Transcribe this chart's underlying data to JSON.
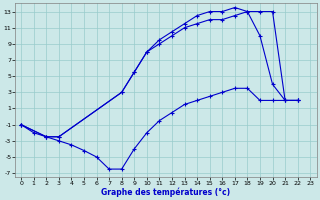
{
  "xlabel": "Graphe des températures (°c)",
  "bg_color": "#cce8e8",
  "grid_color": "#99cccc",
  "line_color": "#0000cc",
  "xlim": [
    -0.5,
    23.5
  ],
  "ylim": [
    -7.5,
    14
  ],
  "xticks": [
    0,
    1,
    2,
    3,
    4,
    5,
    6,
    7,
    8,
    9,
    10,
    11,
    12,
    13,
    14,
    15,
    16,
    17,
    18,
    19,
    20,
    21,
    22,
    23
  ],
  "yticks": [
    -7,
    -5,
    -3,
    -1,
    1,
    3,
    5,
    7,
    9,
    11,
    13
  ],
  "line1_x": [
    0,
    1,
    2,
    3,
    4,
    5,
    6,
    7,
    8,
    9,
    10,
    11,
    12,
    13,
    14,
    15,
    16,
    17,
    18,
    19,
    20,
    21,
    22
  ],
  "line1_y": [
    -1,
    -2,
    -2.5,
    -3,
    -3.5,
    -4.2,
    -5,
    -6.5,
    -6.5,
    -4,
    -2,
    -0.5,
    0.5,
    1.5,
    2,
    2.5,
    3,
    3.5,
    3.5,
    2,
    2,
    2,
    2
  ],
  "line2_x": [
    0,
    2,
    3,
    8,
    9,
    10,
    11,
    12,
    13,
    14,
    15,
    16,
    17,
    18,
    19,
    20,
    21,
    22
  ],
  "line2_y": [
    -1,
    -2.5,
    -2.5,
    3,
    5.5,
    8,
    9,
    10,
    11,
    11.5,
    12,
    12,
    12.5,
    13,
    13,
    13,
    2,
    2
  ],
  "line3_x": [
    0,
    2,
    3,
    8,
    9,
    10,
    11,
    12,
    13,
    14,
    15,
    16,
    17,
    18,
    19,
    20,
    21,
    22
  ],
  "line3_y": [
    -1,
    -2.5,
    -2.5,
    3,
    5.5,
    8,
    9.5,
    10.5,
    11.5,
    12.5,
    13,
    13,
    13.5,
    13,
    10,
    4,
    2,
    2
  ]
}
